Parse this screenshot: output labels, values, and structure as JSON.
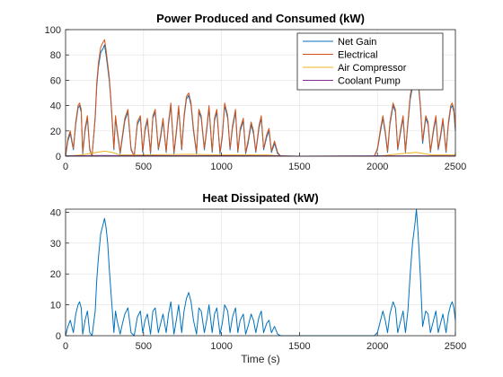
{
  "chart_data": [
    {
      "type": "line",
      "title": "Power Produced and Consumed (kW)",
      "xlabel": "",
      "ylabel": "",
      "xlim": [
        0,
        2500
      ],
      "ylim": [
        0,
        100
      ],
      "xticks": [
        0,
        500,
        1000,
        1500,
        2000,
        2500
      ],
      "yticks": [
        0,
        20,
        40,
        60,
        80,
        100
      ],
      "grid": true,
      "legend_position": "top-right",
      "series": [
        {
          "name": "Net Gain",
          "color": "#0072BD",
          "x": [
            0,
            15,
            30,
            50,
            65,
            80,
            90,
            100,
            110,
            125,
            140,
            155,
            170,
            190,
            200,
            210,
            225,
            240,
            250,
            260,
            270,
            280,
            290,
            300,
            310,
            320,
            330,
            350,
            365,
            380,
            400,
            420,
            440,
            460,
            480,
            495,
            510,
            525,
            545,
            560,
            575,
            595,
            610,
            625,
            645,
            660,
            675,
            695,
            710,
            725,
            745,
            760,
            775,
            790,
            805,
            820,
            840,
            855,
            870,
            890,
            905,
            920,
            940,
            955,
            970,
            990,
            1005,
            1020,
            1040,
            1055,
            1070,
            1090,
            1105,
            1120,
            1140,
            1155,
            1170,
            1190,
            1205,
            1220,
            1240,
            1255,
            1270,
            1290,
            1305,
            1320,
            1340,
            1360,
            1380,
            1400,
            1500,
            1600,
            1700,
            1800,
            1900,
            1980,
            2000,
            2020,
            2035,
            2050,
            2065,
            2080,
            2100,
            2115,
            2130,
            2150,
            2165,
            2180,
            2195,
            2210,
            2225,
            2240,
            2250,
            2260,
            2275,
            2290,
            2310,
            2325,
            2340,
            2360,
            2375,
            2390,
            2405,
            2420,
            2440,
            2455,
            2470,
            2480,
            2490,
            2500
          ],
          "y": [
            0,
            12,
            18,
            5,
            25,
            38,
            40,
            35,
            2,
            20,
            30,
            5,
            0,
            30,
            55,
            70,
            82,
            85,
            88,
            80,
            70,
            60,
            45,
            25,
            5,
            30,
            20,
            2,
            15,
            28,
            35,
            5,
            0,
            25,
            30,
            3,
            20,
            28,
            2,
            30,
            35,
            5,
            15,
            28,
            3,
            25,
            40,
            2,
            18,
            38,
            5,
            30,
            45,
            48,
            40,
            20,
            2,
            35,
            30,
            5,
            20,
            38,
            3,
            28,
            35,
            2,
            15,
            40,
            30,
            5,
            22,
            35,
            3,
            20,
            28,
            2,
            10,
            25,
            18,
            3,
            22,
            30,
            5,
            15,
            20,
            3,
            10,
            2,
            0,
            0,
            0,
            0,
            0,
            0,
            0,
            0,
            5,
            20,
            30,
            18,
            3,
            25,
            40,
            35,
            5,
            20,
            30,
            3,
            25,
            45,
            55,
            65,
            70,
            60,
            40,
            10,
            30,
            25,
            3,
            20,
            30,
            5,
            15,
            28,
            3,
            25,
            38,
            40,
            35,
            20
          ]
        },
        {
          "name": "Electrical",
          "color": "#D95319",
          "x": [
            0,
            15,
            30,
            50,
            65,
            80,
            90,
            100,
            110,
            125,
            140,
            155,
            170,
            190,
            200,
            210,
            225,
            240,
            250,
            260,
            270,
            280,
            290,
            300,
            310,
            320,
            330,
            350,
            365,
            380,
            400,
            420,
            440,
            460,
            480,
            495,
            510,
            525,
            545,
            560,
            575,
            595,
            610,
            625,
            645,
            660,
            675,
            695,
            710,
            725,
            745,
            760,
            775,
            790,
            805,
            820,
            840,
            855,
            870,
            890,
            905,
            920,
            940,
            955,
            970,
            990,
            1005,
            1020,
            1040,
            1055,
            1070,
            1090,
            1105,
            1120,
            1140,
            1155,
            1170,
            1190,
            1205,
            1220,
            1240,
            1255,
            1270,
            1290,
            1305,
            1320,
            1340,
            1360,
            1380,
            1400,
            1500,
            1600,
            1700,
            1800,
            1900,
            1980,
            2000,
            2020,
            2035,
            2050,
            2065,
            2080,
            2100,
            2115,
            2130,
            2150,
            2165,
            2180,
            2195,
            2210,
            2225,
            2240,
            2250,
            2260,
            2275,
            2290,
            2310,
            2325,
            2340,
            2360,
            2375,
            2390,
            2405,
            2420,
            2440,
            2455,
            2470,
            2480,
            2490,
            2500
          ],
          "y": [
            0,
            14,
            20,
            6,
            27,
            40,
            42,
            37,
            3,
            22,
            32,
            6,
            0,
            32,
            58,
            73,
            86,
            90,
            92,
            84,
            73,
            63,
            47,
            27,
            6,
            32,
            22,
            3,
            17,
            30,
            37,
            6,
            0,
            27,
            32,
            4,
            22,
            30,
            3,
            32,
            37,
            6,
            17,
            30,
            4,
            27,
            42,
            3,
            20,
            40,
            6,
            32,
            47,
            50,
            42,
            22,
            3,
            37,
            32,
            6,
            22,
            40,
            4,
            30,
            37,
            3,
            17,
            42,
            32,
            6,
            24,
            37,
            4,
            22,
            30,
            3,
            12,
            27,
            20,
            4,
            24,
            32,
            6,
            17,
            22,
            4,
            12,
            3,
            0,
            0,
            0,
            0,
            0,
            0,
            0,
            0,
            6,
            22,
            32,
            20,
            4,
            27,
            42,
            37,
            6,
            22,
            32,
            4,
            27,
            48,
            58,
            68,
            73,
            63,
            42,
            12,
            32,
            27,
            4,
            22,
            32,
            6,
            17,
            30,
            4,
            27,
            40,
            42,
            37,
            22
          ]
        },
        {
          "name": "Air Compressor",
          "color": "#EDB120",
          "x": [
            0,
            100,
            200,
            250,
            300,
            350,
            500,
            800,
            1000,
            1300,
            1400,
            1500,
            2000,
            2150,
            2250,
            2350,
            2500
          ],
          "y": [
            0,
            1,
            3,
            4,
            3,
            1,
            1,
            1.5,
            1,
            1,
            0,
            0,
            0,
            2,
            3,
            1,
            1
          ]
        },
        {
          "name": "Coolant Pump",
          "color": "#7E2F8E",
          "x": [
            0,
            250,
            1400,
            1500,
            2000,
            2500
          ],
          "y": [
            0.3,
            0.5,
            0.3,
            0,
            0.3,
            0.3
          ]
        }
      ]
    },
    {
      "type": "line",
      "title": "Heat Dissipated (kW)",
      "xlabel": "Time (s)",
      "ylabel": "",
      "xlim": [
        0,
        2500
      ],
      "ylim": [
        0,
        41
      ],
      "xticks": [
        0,
        500,
        1000,
        1500,
        2000,
        2500
      ],
      "yticks": [
        0,
        10,
        20,
        30,
        40
      ],
      "grid": true,
      "series": [
        {
          "name": "",
          "color": "#0072BD",
          "x": [
            0,
            15,
            30,
            50,
            65,
            80,
            90,
            100,
            110,
            125,
            140,
            155,
            170,
            190,
            200,
            210,
            225,
            240,
            250,
            260,
            270,
            280,
            290,
            300,
            310,
            320,
            330,
            350,
            365,
            380,
            400,
            420,
            440,
            460,
            480,
            495,
            510,
            525,
            545,
            560,
            575,
            595,
            610,
            625,
            645,
            660,
            675,
            695,
            710,
            725,
            745,
            760,
            775,
            790,
            805,
            820,
            840,
            855,
            870,
            890,
            905,
            920,
            940,
            955,
            970,
            990,
            1005,
            1020,
            1040,
            1055,
            1070,
            1090,
            1105,
            1120,
            1140,
            1155,
            1170,
            1190,
            1205,
            1220,
            1240,
            1255,
            1270,
            1290,
            1305,
            1320,
            1340,
            1360,
            1380,
            1400,
            1500,
            1600,
            1700,
            1800,
            1900,
            1980,
            2000,
            2020,
            2035,
            2050,
            2065,
            2080,
            2100,
            2115,
            2130,
            2150,
            2165,
            2180,
            2195,
            2210,
            2225,
            2240,
            2250,
            2260,
            2275,
            2290,
            2310,
            2325,
            2340,
            2360,
            2375,
            2390,
            2405,
            2420,
            2440,
            2455,
            2470,
            2480,
            2490,
            2500
          ],
          "y": [
            0,
            3,
            5,
            1,
            7,
            10,
            11,
            9,
            0.5,
            5,
            8,
            1,
            0,
            8,
            18,
            25,
            33,
            36,
            38,
            35,
            30,
            22,
            15,
            8,
            1,
            8,
            5,
            0.5,
            4,
            7,
            9,
            1,
            0,
            6,
            8,
            1,
            5,
            7,
            0.5,
            8,
            9,
            1,
            4,
            7,
            1,
            7,
            11,
            0.5,
            5,
            10,
            1,
            8,
            12,
            14,
            11,
            5,
            0.5,
            9,
            8,
            1,
            5,
            10,
            1,
            7,
            9,
            0.5,
            4,
            10,
            8,
            1,
            6,
            9,
            1,
            5,
            7,
            0.5,
            3,
            7,
            5,
            1,
            6,
            8,
            1,
            4,
            5,
            1,
            3,
            0.5,
            0,
            0,
            0,
            0,
            0,
            0,
            0,
            0,
            1,
            5,
            8,
            5,
            1,
            7,
            11,
            9,
            1,
            5,
            8,
            1,
            8,
            20,
            30,
            36,
            41,
            34,
            20,
            3,
            8,
            7,
            1,
            5,
            8,
            1,
            4,
            7,
            1,
            7,
            10,
            11,
            9,
            5
          ]
        }
      ]
    }
  ]
}
